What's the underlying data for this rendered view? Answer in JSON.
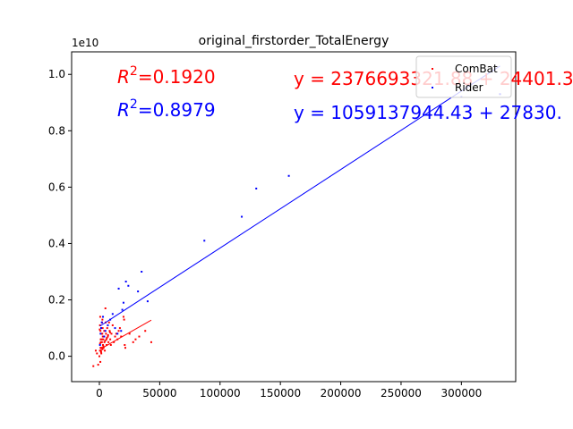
{
  "chart_data": {
    "type": "scatter",
    "title": "original_firstorder_TotalEnergy",
    "xlabel": "",
    "ylabel": "",
    "y_multiplier_label": "1e10",
    "xlim": [
      -23000,
      345000
    ],
    "ylim": [
      -0.09,
      1.08
    ],
    "x_ticks": [
      0,
      50000,
      100000,
      150000,
      200000,
      250000,
      300000
    ],
    "x_tick_labels": [
      "0",
      "50000",
      "100000",
      "150000",
      "200000",
      "250000",
      "300000"
    ],
    "y_ticks": [
      0.0,
      0.2,
      0.4,
      0.6,
      0.8,
      1.0
    ],
    "y_tick_labels": [
      "0.0",
      "0.2",
      "0.4",
      "0.6",
      "0.8",
      "1.0"
    ],
    "legend_position": "top-right",
    "series": [
      {
        "name": "ComBat",
        "color": "#ff0000",
        "points": [
          [
            -5000,
            -0.035
          ],
          [
            -3000,
            0.02
          ],
          [
            -2000,
            0.01
          ],
          [
            -1000,
            -0.03
          ],
          [
            0,
            0.0
          ],
          [
            500,
            0.02
          ],
          [
            800,
            -0.02
          ],
          [
            1000,
            0.03
          ],
          [
            1200,
            0.05
          ],
          [
            1500,
            0.1
          ],
          [
            1800,
            0.08
          ],
          [
            2000,
            0.06
          ],
          [
            2200,
            0.12
          ],
          [
            2500,
            0.13
          ],
          [
            2800,
            0.07
          ],
          [
            3000,
            0.04
          ],
          [
            500,
            0.11
          ],
          [
            700,
            0.14
          ],
          [
            900,
            0.09
          ],
          [
            1100,
            0.06
          ],
          [
            1300,
            0.02
          ],
          [
            1600,
            0.01
          ],
          [
            1900,
            0.03
          ],
          [
            2100,
            0.05
          ],
          [
            2400,
            0.08
          ],
          [
            2700,
            0.1
          ],
          [
            3200,
            0.06
          ],
          [
            3500,
            0.03
          ],
          [
            3800,
            0.07
          ],
          [
            4000,
            0.09
          ],
          [
            4200,
            0.05
          ],
          [
            4500,
            0.02
          ],
          [
            5000,
            0.17
          ],
          [
            5200,
            0.12
          ],
          [
            5500,
            0.08
          ],
          [
            5800,
            0.06
          ],
          [
            6000,
            0.04
          ],
          [
            6500,
            0.1
          ],
          [
            7000,
            0.07
          ],
          [
            7500,
            0.05
          ],
          [
            8000,
            0.12
          ],
          [
            8500,
            0.09
          ],
          [
            9000,
            0.06
          ],
          [
            9500,
            0.04
          ],
          [
            10000,
            0.08
          ],
          [
            11000,
            0.11
          ],
          [
            12000,
            0.05
          ],
          [
            13000,
            0.07
          ],
          [
            14000,
            0.08
          ],
          [
            15000,
            0.06
          ],
          [
            16000,
            0.09
          ],
          [
            17000,
            0.1
          ],
          [
            18000,
            0.07
          ],
          [
            20000,
            0.14
          ],
          [
            20500,
            0.13
          ],
          [
            21000,
            0.04
          ],
          [
            21500,
            0.03
          ],
          [
            25000,
            0.08
          ],
          [
            28000,
            0.05
          ],
          [
            30000,
            0.06
          ],
          [
            33000,
            0.07
          ],
          [
            38000,
            0.09
          ],
          [
            43000,
            0.05
          ],
          [
            1400,
            0.015
          ],
          [
            2600,
            0.025
          ],
          [
            3300,
            0.035
          ],
          [
            600,
            0.045
          ],
          [
            4800,
            0.055
          ],
          [
            6200,
            0.065
          ],
          [
            7200,
            0.075
          ],
          [
            8800,
            0.085
          ],
          [
            300,
            0.095
          ]
        ],
        "fit": {
          "x": [
            1000,
            43000
          ],
          "y": [
            0.026,
            0.128
          ]
        },
        "r2_label": "R^2 = 0.1920",
        "equation_label": "y = 2376693321.88 + 24401.3"
      },
      {
        "name": "Rider",
        "color": "#0000ff",
        "points": [
          [
            500,
            0.04
          ],
          [
            1000,
            0.08
          ],
          [
            1500,
            0.1
          ],
          [
            2000,
            0.12
          ],
          [
            3000,
            0.14
          ],
          [
            4000,
            0.07
          ],
          [
            5000,
            0.09
          ],
          [
            7000,
            0.11
          ],
          [
            9000,
            0.13
          ],
          [
            11000,
            0.15
          ],
          [
            13000,
            0.1
          ],
          [
            15000,
            0.08
          ],
          [
            16000,
            0.24
          ],
          [
            18000,
            0.09
          ],
          [
            19000,
            0.165
          ],
          [
            20000,
            0.19
          ],
          [
            22000,
            0.265
          ],
          [
            24000,
            0.25
          ],
          [
            32000,
            0.23
          ],
          [
            35000,
            0.3
          ],
          [
            40000,
            0.195
          ],
          [
            87000,
            0.41
          ],
          [
            118000,
            0.495
          ],
          [
            130000,
            0.595
          ],
          [
            157000,
            0.64
          ],
          [
            300000,
            0.92
          ],
          [
            332000,
            0.93
          ]
        ],
        "fit": {
          "x": [
            500,
            332000
          ],
          "y": [
            0.107,
            1.03
          ]
        },
        "r2_label": "R^2 = 0.8979",
        "equation_label": "y = 1059137944.43 + 27830."
      }
    ]
  }
}
